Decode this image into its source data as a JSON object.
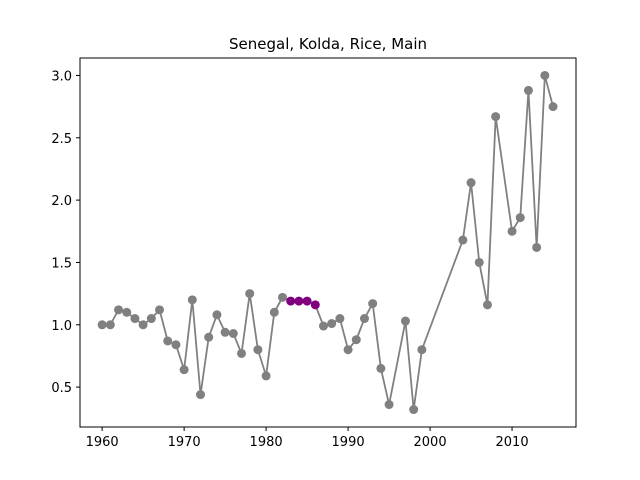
{
  "chart_data": {
    "type": "line",
    "title": "Senegal, Kolda, Rice, Main",
    "xlabel": "",
    "ylabel": "",
    "xlim": [
      1957.3,
      2017.8
    ],
    "ylim": [
      0.18,
      3.14
    ],
    "xticks": [
      1960,
      1970,
      1980,
      1990,
      2000,
      2010
    ],
    "yticks": [
      0.5,
      1.0,
      1.5,
      2.0,
      2.5,
      3.0
    ],
    "ytick_labels": [
      "0.5",
      "1.0",
      "1.5",
      "2.0",
      "2.5",
      "3.0"
    ],
    "grid": false,
    "line_color": "#808080",
    "marker_color": "#808080",
    "highlight_color": "#800080",
    "series": [
      {
        "x": [
          1960,
          1961,
          1962,
          1963,
          1964,
          1965,
          1966,
          1967,
          1968,
          1969,
          1970,
          1971,
          1972,
          1973,
          1974,
          1975,
          1976,
          1977,
          1978,
          1979,
          1980,
          1981,
          1982,
          1983,
          1984,
          1985,
          1986,
          1987,
          1988,
          1989,
          1990,
          1991,
          1992,
          1993,
          1994,
          1995,
          1997,
          1998,
          1999,
          2004,
          2005,
          2006,
          2007,
          2008,
          2010,
          2011,
          2012,
          2013,
          2014,
          2015
        ],
        "values": [
          1.0,
          1.0,
          1.12,
          1.1,
          1.05,
          1.0,
          1.05,
          1.12,
          0.87,
          0.84,
          0.64,
          1.2,
          0.44,
          0.9,
          1.08,
          0.94,
          0.93,
          0.77,
          1.25,
          0.8,
          0.59,
          1.1,
          1.22,
          1.19,
          1.19,
          1.19,
          1.16,
          0.99,
          1.01,
          1.05,
          0.8,
          0.88,
          1.05,
          1.17,
          0.65,
          0.36,
          1.03,
          0.32,
          0.8,
          1.68,
          2.14,
          1.5,
          1.16,
          2.67,
          1.75,
          1.86,
          2.88,
          1.62,
          3.0,
          2.75
        ],
        "highlight": [
          1983,
          1984,
          1985,
          1986
        ]
      }
    ]
  }
}
